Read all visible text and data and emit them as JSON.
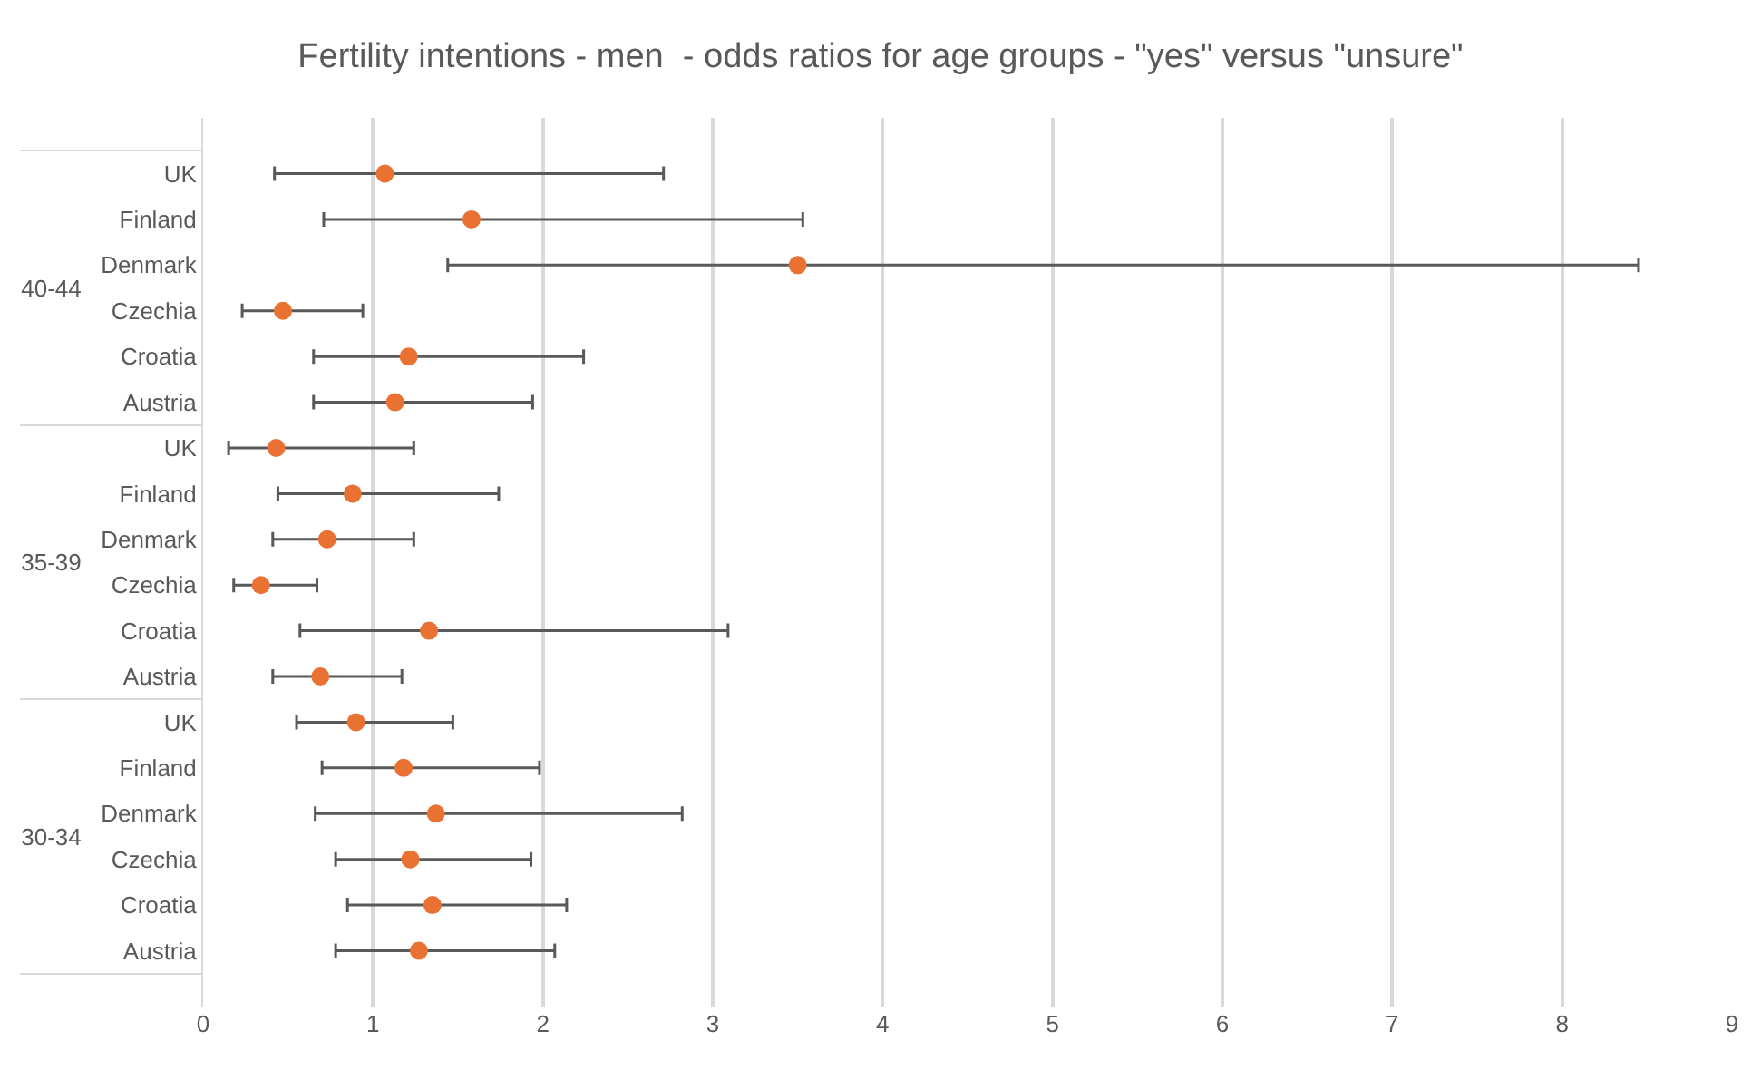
{
  "chart_data": {
    "type": "scatter",
    "orientation": "horizontal",
    "title": "Fertility intentions - men  - odds ratios for age groups - \"yes\" versus \"unsure\"",
    "categories": [
      "UK",
      "Finland",
      "Denmark",
      "Czechia",
      "Croatia",
      "Austria",
      "UK",
      "Finland",
      "Denmark",
      "Czechia",
      "Croatia",
      "Austria",
      "UK",
      "Finland",
      "Denmark",
      "Czechia",
      "Croatia",
      "Austria"
    ],
    "annotations": [
      "40-44",
      "35-39",
      "30-34"
    ],
    "series": [
      {
        "color": "#e97132",
        "values": [
          1.07,
          1.58,
          3.5,
          0.47,
          1.21,
          1.13,
          0.43,
          0.88,
          0.73,
          0.34,
          1.33,
          0.69,
          0.9,
          1.18,
          1.37,
          1.22,
          1.35,
          1.27
        ],
        "errors": [
          [
            0.42,
            2.71
          ],
          [
            0.71,
            3.53
          ],
          [
            1.44,
            8.45
          ],
          [
            0.23,
            0.94
          ],
          [
            0.65,
            2.24
          ],
          [
            0.65,
            1.94
          ],
          [
            0.15,
            1.24
          ],
          [
            0.44,
            1.74
          ],
          [
            0.41,
            1.24
          ],
          [
            0.18,
            0.67
          ],
          [
            0.57,
            3.09
          ],
          [
            0.41,
            1.17
          ],
          [
            0.55,
            1.47
          ],
          [
            0.7,
            1.98
          ],
          [
            0.66,
            2.82
          ],
          [
            0.78,
            1.93
          ],
          [
            0.85,
            2.14
          ],
          [
            0.78,
            2.07
          ]
        ]
      }
    ],
    "xlim": [
      0,
      9
    ],
    "xticks": [
      0,
      1,
      2,
      3,
      4,
      5,
      6,
      7,
      8,
      9
    ],
    "grid": "x",
    "marker": "circle"
  }
}
